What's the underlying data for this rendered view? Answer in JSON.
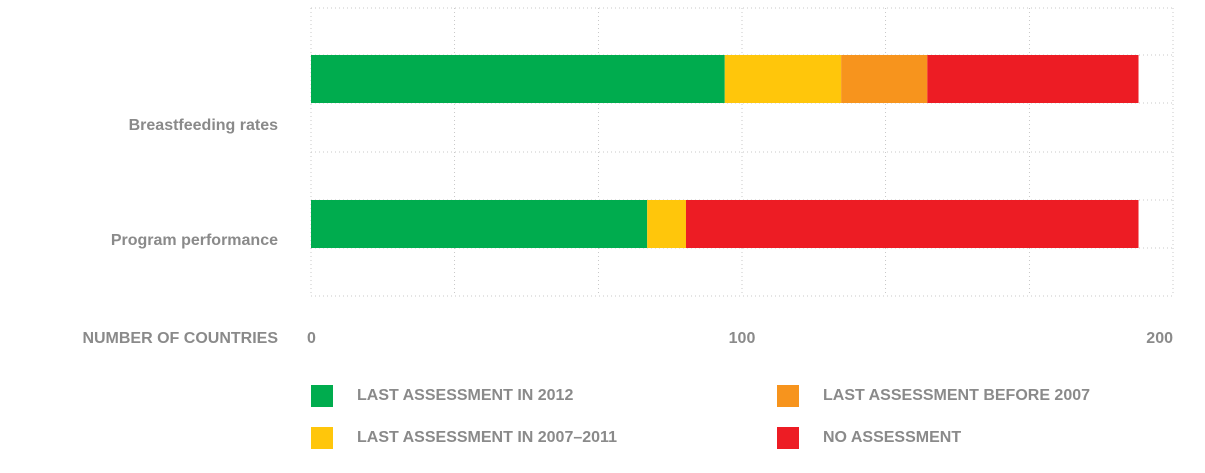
{
  "chart_data": {
    "type": "stacked-barh",
    "categories": [
      "Breastfeeding rates",
      "Program performance"
    ],
    "series": [
      {
        "name": "LAST ASSESSMENT IN 2012",
        "color": "#00ac4e",
        "values": [
          96,
          78
        ]
      },
      {
        "name": "LAST ASSESSMENT IN 2007–2011",
        "color": "#ffc60b",
        "values": [
          27,
          9
        ]
      },
      {
        "name": "LAST ASSESSMENT BEFORE 2007",
        "color": "#f7941d",
        "values": [
          20,
          0
        ]
      },
      {
        "name": "NO ASSESSMENT",
        "color": "#ed1c24",
        "values": [
          49,
          105
        ]
      }
    ],
    "xlabel": "NUMBER OF COUNTRIES",
    "xlim": [
      0,
      200
    ],
    "xticks": [
      0,
      100,
      200
    ],
    "xgrid": [
      0,
      33.3,
      66.7,
      100,
      133.3,
      166.7,
      200
    ],
    "grid": true
  }
}
